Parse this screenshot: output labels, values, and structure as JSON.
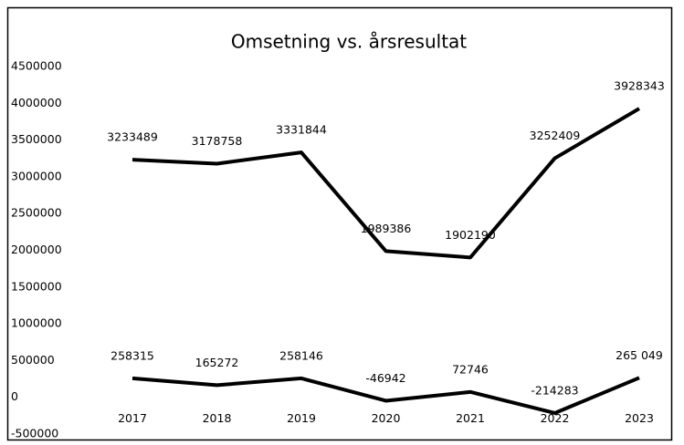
{
  "chart_data": {
    "type": "line",
    "title": "Omsetning vs. årsresultat",
    "categories": [
      "2017",
      "2018",
      "2019",
      "2020",
      "2021",
      "2022",
      "2023"
    ],
    "series": [
      {
        "color": "#000000",
        "values": [
          3233489,
          3178758,
          3331844,
          1989386,
          1902190,
          3252409,
          3928343
        ]
      },
      {
        "color": "#000000",
        "values": [
          258315,
          165272,
          258146,
          -46942,
          72746,
          -214283,
          265049
        ],
        "value_labels": [
          "258315",
          "165272",
          "258146",
          "-46942",
          "72746",
          "-214283",
          "265 049"
        ]
      }
    ],
    "ylim": [
      -500000,
      4500000
    ],
    "yticks": [
      -500000,
      0,
      500000,
      1000000,
      1500000,
      2000000,
      2500000,
      3000000,
      3500000,
      4000000,
      4500000
    ],
    "grid": false
  }
}
